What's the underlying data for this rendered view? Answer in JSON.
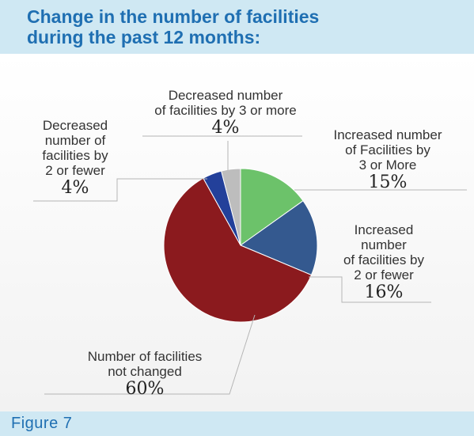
{
  "header": {
    "title": "Change in the number of facilities\nduring the past 12 months:"
  },
  "footer": {
    "figure_label": "Figure 7"
  },
  "colors": {
    "increased_3_or_more": "#6cc26a",
    "increased_2_or_fewer": "#34598f",
    "not_changed": "#8b1a1e",
    "decreased_2_or_fewer": "#23409a",
    "decreased_3_or_more": "#bdbdbd",
    "header_bg": "#cfe8f3",
    "title_text": "#1f6fb2"
  },
  "chart_data": {
    "type": "pie",
    "title": "Change in the number of facilities during the past 12 months:",
    "slices": [
      {
        "key": "increased_3_or_more",
        "label": "Increased number\nof Facilities by\n3 or More",
        "value": 15,
        "display": "15%"
      },
      {
        "key": "increased_2_or_fewer",
        "label": "Increased\nnumber\nof facilities by\n2 or fewer",
        "value": 16,
        "display": "16%"
      },
      {
        "key": "not_changed",
        "label": "Number of facilities\nnot changed",
        "value": 60,
        "display": "60%"
      },
      {
        "key": "decreased_2_or_fewer",
        "label": "Decreased\nnumber of\nfacilities by\n2 or fewer",
        "value": 4,
        "display": "4%"
      },
      {
        "key": "decreased_3_or_more",
        "label": "Decreased number\nof facilities by 3 or more",
        "value": 4,
        "display": "4%"
      }
    ],
    "start_angle_deg": 0,
    "direction": "clockwise",
    "legend": "none"
  }
}
